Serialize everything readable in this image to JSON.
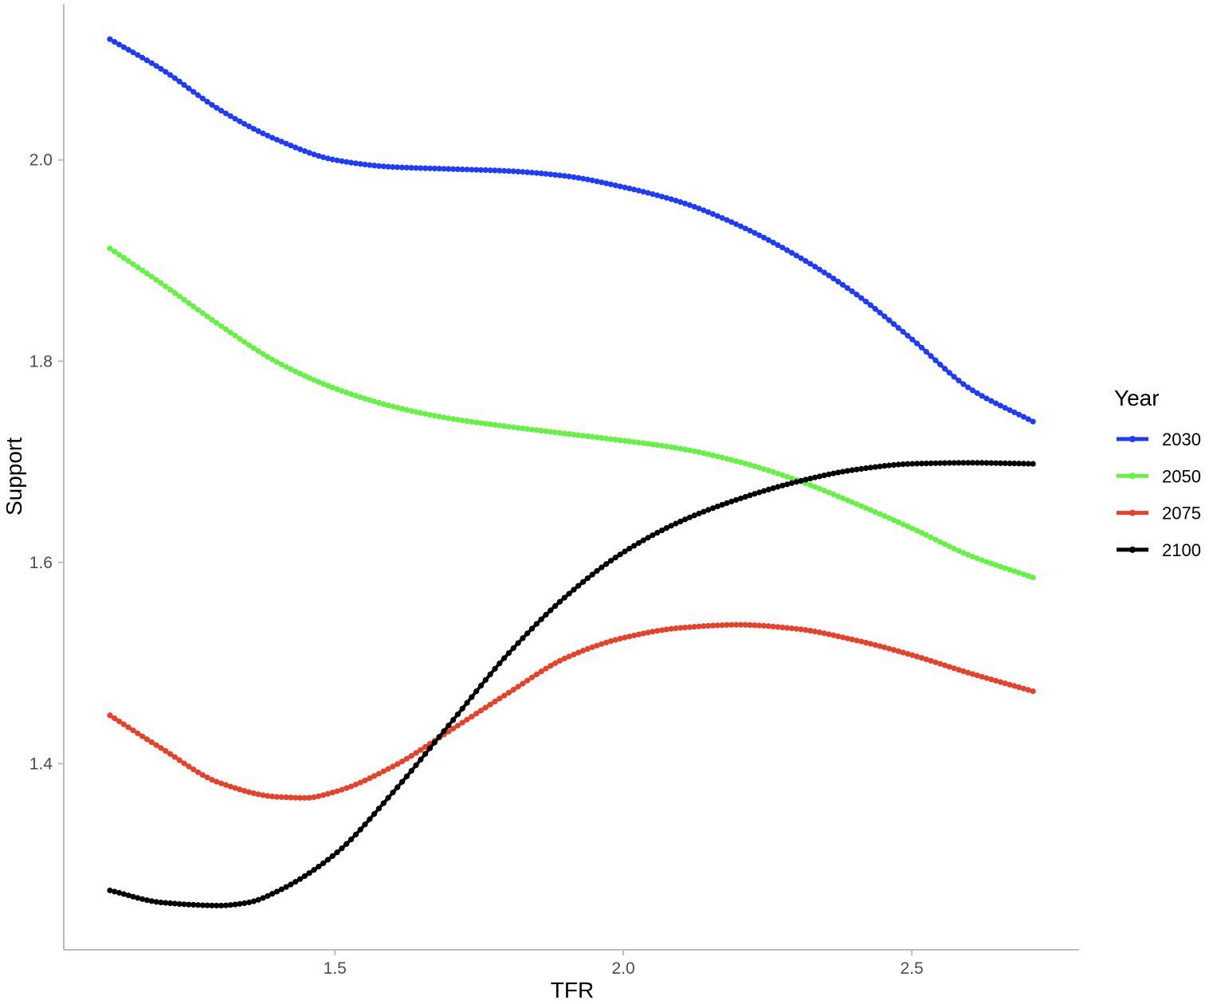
{
  "chart_data": {
    "type": "line",
    "xlabel": "TFR",
    "ylabel": "Support",
    "xlim": [
      1.03,
      2.79
    ],
    "ylim": [
      1.215,
      2.155
    ],
    "xticks": [
      1.5,
      2.0,
      2.5
    ],
    "yticks": [
      1.4,
      1.6,
      1.8,
      2.0
    ],
    "xtick_labels": [
      "1.5",
      "2.0",
      "2.5"
    ],
    "ytick_labels": [
      "1.4",
      "1.6",
      "1.8",
      "2.0"
    ],
    "grid": false,
    "markers": "points along each line",
    "legend": {
      "title": "Year",
      "position": "right"
    },
    "series": [
      {
        "name": "2030",
        "color": "#1f3bff",
        "x": [
          1.11,
          1.2,
          1.3,
          1.4,
          1.5,
          1.6,
          1.7,
          1.8,
          1.9,
          2.0,
          2.1,
          2.2,
          2.3,
          2.4,
          2.5,
          2.6,
          2.71
        ],
        "y": [
          2.12,
          2.09,
          2.05,
          2.02,
          2.0,
          1.993,
          1.991,
          1.989,
          1.984,
          1.973,
          1.958,
          1.935,
          1.905,
          1.868,
          1.822,
          1.773,
          1.74
        ]
      },
      {
        "name": "2050",
        "color": "#66f244",
        "x": [
          1.11,
          1.2,
          1.3,
          1.4,
          1.5,
          1.6,
          1.7,
          1.8,
          1.9,
          2.0,
          2.1,
          2.2,
          2.3,
          2.4,
          2.5,
          2.6,
          2.71
        ],
        "y": [
          1.912,
          1.877,
          1.836,
          1.799,
          1.773,
          1.755,
          1.743,
          1.735,
          1.728,
          1.721,
          1.713,
          1.7,
          1.682,
          1.659,
          1.634,
          1.607,
          1.585
        ]
      },
      {
        "name": "2075",
        "color": "#e8412a",
        "x": [
          1.11,
          1.2,
          1.3,
          1.4,
          1.45,
          1.5,
          1.6,
          1.7,
          1.8,
          1.9,
          2.0,
          2.1,
          2.2,
          2.3,
          2.4,
          2.5,
          2.6,
          2.71
        ],
        "y": [
          1.448,
          1.415,
          1.381,
          1.367,
          1.366,
          1.372,
          1.397,
          1.433,
          1.47,
          1.505,
          1.525,
          1.535,
          1.538,
          1.534,
          1.523,
          1.508,
          1.49,
          1.472
        ]
      },
      {
        "name": "2100",
        "color": "#000000",
        "x": [
          1.11,
          1.2,
          1.3,
          1.35,
          1.4,
          1.5,
          1.6,
          1.7,
          1.8,
          1.9,
          2.0,
          2.1,
          2.2,
          2.3,
          2.4,
          2.5,
          2.6,
          2.71
        ],
        "y": [
          1.274,
          1.262,
          1.259,
          1.262,
          1.273,
          1.31,
          1.371,
          1.44,
          1.509,
          1.566,
          1.61,
          1.641,
          1.663,
          1.68,
          1.692,
          1.698,
          1.699,
          1.698
        ]
      }
    ]
  }
}
